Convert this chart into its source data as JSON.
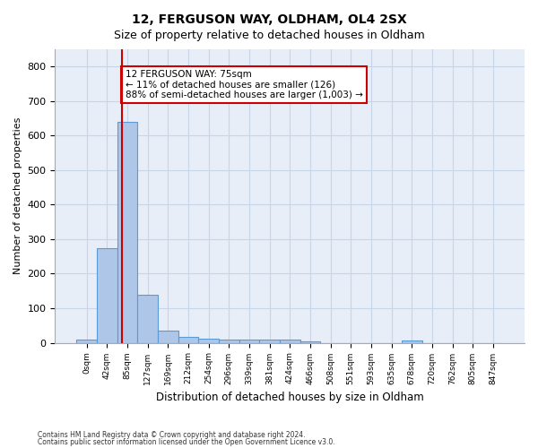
{
  "title1": "12, FERGUSON WAY, OLDHAM, OL4 2SX",
  "title2": "Size of property relative to detached houses in Oldham",
  "xlabel": "Distribution of detached houses by size in Oldham",
  "ylabel": "Number of detached properties",
  "bin_labels": [
    "0sqm",
    "42sqm",
    "85sqm",
    "127sqm",
    "169sqm",
    "212sqm",
    "254sqm",
    "296sqm",
    "339sqm",
    "381sqm",
    "424sqm",
    "466sqm",
    "508sqm",
    "551sqm",
    "593sqm",
    "635sqm",
    "678sqm",
    "720sqm",
    "762sqm",
    "805sqm",
    "847sqm"
  ],
  "bar_heights": [
    8,
    275,
    641,
    140,
    35,
    18,
    12,
    10,
    10,
    9,
    8,
    5,
    0,
    0,
    0,
    0,
    6,
    0,
    0,
    0,
    0
  ],
  "bar_color": "#aec6e8",
  "bar_edge_color": "#5b9bd5",
  "property_line_x": 1.75,
  "property_size": "75sqm",
  "annotation_text": "12 FERGUSON WAY: 75sqm\n← 11% of detached houses are smaller (126)\n88% of semi-detached houses are larger (1,003) →",
  "annotation_box_color": "#ffffff",
  "annotation_box_edge": "#cc0000",
  "vline_color": "#cc0000",
  "ylim": [
    0,
    850
  ],
  "yticks": [
    0,
    100,
    200,
    300,
    400,
    500,
    600,
    700,
    800
  ],
  "grid_color": "#c8d4e8",
  "bg_color": "#e8eef8",
  "footer1": "Contains HM Land Registry data © Crown copyright and database right 2024.",
  "footer2": "Contains public sector information licensed under the Open Government Licence v3.0."
}
